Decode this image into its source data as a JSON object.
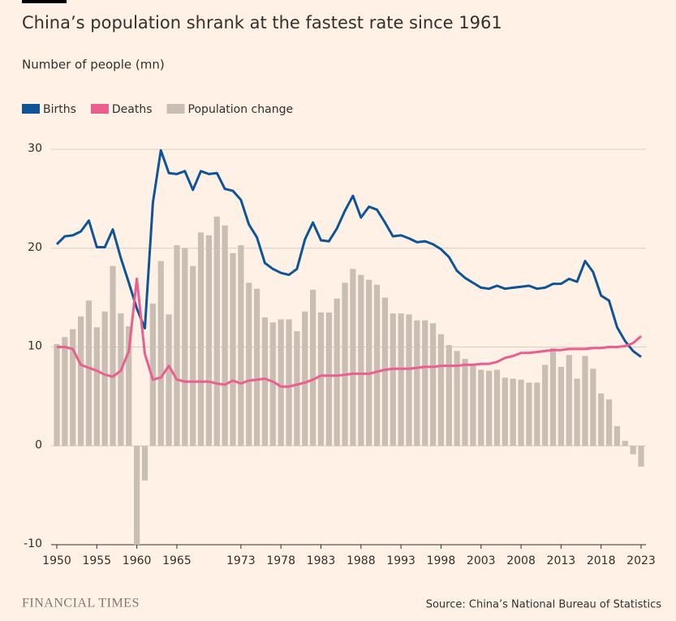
{
  "chart_data": {
    "type": "bar-line",
    "title": "China’s population shrank at the fastest rate since 1961",
    "subtitle": "Number of people (mn)",
    "source": "Source: China’s National Bureau of Statistics",
    "brand": "FINANCIAL TIMES",
    "x": [
      1950,
      1951,
      1952,
      1953,
      1954,
      1955,
      1956,
      1957,
      1958,
      1959,
      1960,
      1961,
      1962,
      1963,
      1964,
      1965,
      1966,
      1967,
      1968,
      1969,
      1970,
      1971,
      1972,
      1973,
      1974,
      1975,
      1976,
      1977,
      1978,
      1979,
      1980,
      1981,
      1982,
      1983,
      1984,
      1985,
      1986,
      1987,
      1988,
      1989,
      1990,
      1991,
      1992,
      1993,
      1994,
      1995,
      1996,
      1997,
      1998,
      1999,
      2000,
      2001,
      2002,
      2003,
      2004,
      2005,
      2006,
      2007,
      2008,
      2009,
      2010,
      2011,
      2012,
      2013,
      2014,
      2015,
      2016,
      2017,
      2018,
      2019,
      2020,
      2021,
      2022,
      2023
    ],
    "xlim": [
      1950,
      2023
    ],
    "xticks": [
      1950,
      1955,
      1960,
      1965,
      1973,
      1978,
      1983,
      1988,
      1993,
      1998,
      2003,
      2008,
      2013,
      2018,
      2023
    ],
    "ylim": [
      -10,
      30
    ],
    "yticks": [
      30,
      20,
      10,
      0,
      -10
    ],
    "grid": true,
    "series": [
      {
        "name": "Births",
        "type": "line",
        "color": "#0f5499",
        "values": [
          20.4,
          21.2,
          21.3,
          21.7,
          22.8,
          20.1,
          20.1,
          21.9,
          19.0,
          16.5,
          13.9,
          11.9,
          24.6,
          29.9,
          27.6,
          27.5,
          27.8,
          25.9,
          27.8,
          27.5,
          27.6,
          26.0,
          25.8,
          24.9,
          22.4,
          21.1,
          18.5,
          17.9,
          17.5,
          17.3,
          17.9,
          20.9,
          22.6,
          20.8,
          20.7,
          22.0,
          23.8,
          25.3,
          23.1,
          24.2,
          23.9,
          22.6,
          21.2,
          21.3,
          21.0,
          20.6,
          20.7,
          20.4,
          19.9,
          19.1,
          17.7,
          17.0,
          16.5,
          16.0,
          15.9,
          16.2,
          15.9,
          16.0,
          16.1,
          16.2,
          15.9,
          16.0,
          16.4,
          16.4,
          16.9,
          16.6,
          18.7,
          17.6,
          15.2,
          14.7,
          12.0,
          10.6,
          9.6,
          9.0
        ]
      },
      {
        "name": "Deaths",
        "type": "line",
        "color": "#eb5e8d",
        "values": [
          10.0,
          10.0,
          9.8,
          8.2,
          7.9,
          7.6,
          7.2,
          7.0,
          7.6,
          9.6,
          16.9,
          9.3,
          6.7,
          6.9,
          8.1,
          6.7,
          6.5,
          6.5,
          6.5,
          6.5,
          6.3,
          6.2,
          6.6,
          6.3,
          6.6,
          6.7,
          6.8,
          6.5,
          6.0,
          6.0,
          6.2,
          6.4,
          6.7,
          7.1,
          7.1,
          7.1,
          7.2,
          7.3,
          7.3,
          7.3,
          7.5,
          7.7,
          7.8,
          7.8,
          7.8,
          7.9,
          8.0,
          8.0,
          8.1,
          8.1,
          8.1,
          8.2,
          8.2,
          8.3,
          8.3,
          8.5,
          8.9,
          9.1,
          9.4,
          9.4,
          9.5,
          9.6,
          9.7,
          9.7,
          9.8,
          9.8,
          9.8,
          9.9,
          9.9,
          10.0,
          10.0,
          10.1,
          10.4,
          11.1
        ]
      },
      {
        "name": "Population change",
        "type": "bar",
        "color": "#c9beb4",
        "values": [
          10.3,
          11.0,
          11.8,
          13.1,
          14.7,
          12.0,
          13.6,
          18.2,
          13.4,
          12.1,
          -10.0,
          -3.5,
          14.4,
          18.7,
          13.3,
          20.3,
          20.0,
          18.2,
          21.6,
          21.3,
          23.2,
          22.3,
          19.5,
          20.3,
          16.5,
          15.9,
          13.0,
          12.5,
          12.8,
          12.8,
          11.6,
          13.6,
          15.8,
          13.5,
          13.5,
          14.9,
          16.5,
          17.9,
          17.3,
          16.8,
          16.3,
          15.0,
          13.4,
          13.4,
          13.3,
          12.7,
          12.7,
          12.4,
          11.3,
          10.2,
          9.6,
          8.8,
          8.3,
          7.7,
          7.6,
          7.7,
          6.9,
          6.8,
          6.7,
          6.4,
          6.4,
          8.2,
          9.9,
          8.0,
          9.2,
          6.8,
          9.1,
          7.8,
          5.3,
          4.7,
          2.0,
          0.5,
          -0.85,
          -2.1
        ]
      }
    ]
  }
}
